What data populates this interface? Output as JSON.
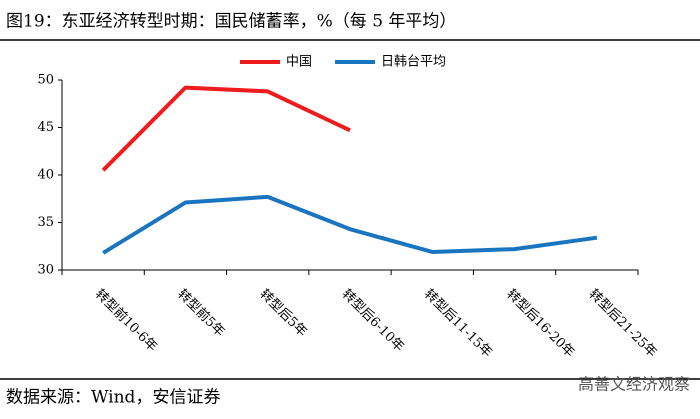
{
  "title": "图19：东亚经济转型时期：国民储蓄率，%（每 5 年平均）",
  "source": "数据来源：Wind，安信证券",
  "watermark": "高善文经济观察",
  "chart_data": {
    "type": "line",
    "categories": [
      "转型前10-6年",
      "转型前5年",
      "转型后5年",
      "转型后6-10年",
      "转型后11-15年",
      "转型后16-20年",
      "转型后21-25年"
    ],
    "series": [
      {
        "name": "中国",
        "color": "#ee1c1c",
        "values": [
          40.5,
          49.2,
          48.8,
          44.7,
          null,
          null,
          null
        ]
      },
      {
        "name": "日韩台平均",
        "color": "#1a75c0",
        "values": [
          31.8,
          37.1,
          37.7,
          34.3,
          31.9,
          32.2,
          33.4
        ]
      }
    ],
    "ylim": [
      30,
      50
    ],
    "yticks": [
      30,
      35,
      40,
      45,
      50
    ],
    "legend": "top"
  }
}
